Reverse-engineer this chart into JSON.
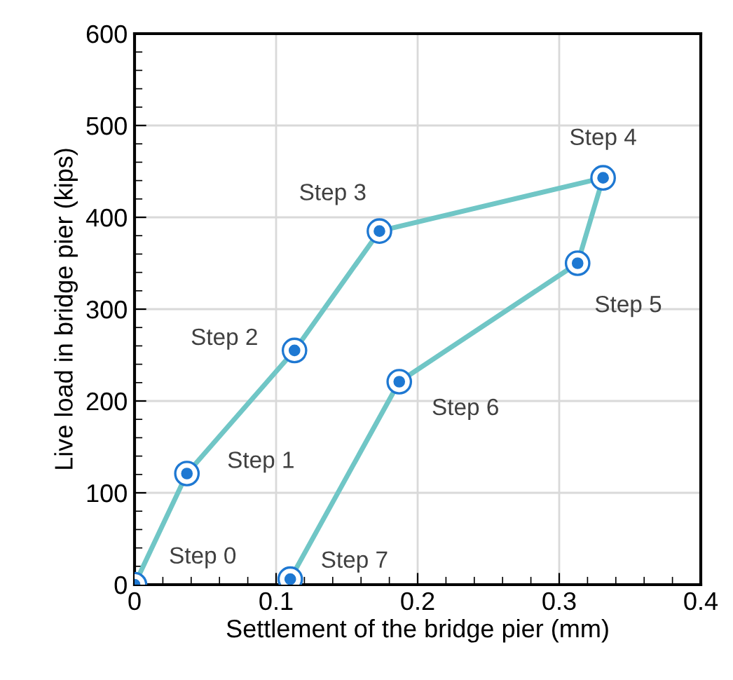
{
  "chart_data": {
    "type": "line",
    "xlabel": "Settlement of the bridge pier (mm)",
    "ylabel": "Live load in bridge pier (kips)",
    "x": [
      0,
      0.037,
      0.113,
      0.173,
      0.331,
      0.313,
      0.187,
      0.11
    ],
    "series": [
      {
        "color": "#70c6c6",
        "values": [
          0,
          121,
          255,
          385,
          443,
          350,
          221,
          6
        ]
      }
    ],
    "marker": "circle",
    "line_style": "solid",
    "xlim": [
      0,
      0.4
    ],
    "xticks": [
      0,
      0.1,
      0.2,
      0.3,
      0.4
    ],
    "ylim": [
      0,
      600
    ],
    "yticks": [
      0,
      100,
      200,
      300,
      400,
      500,
      600
    ],
    "grid": true,
    "annotations": [
      {
        "text": "Step 0",
        "x": 0,
        "y": 0
      },
      {
        "text": "Step 1",
        "x": 0.037,
        "y": 121
      },
      {
        "text": "Step 2",
        "x": 0.113,
        "y": 255
      },
      {
        "text": "Step 3",
        "x": 0.173,
        "y": 385
      },
      {
        "text": "Step 4",
        "x": 0.331,
        "y": 443
      },
      {
        "text": "Step 5",
        "x": 0.313,
        "y": 350
      },
      {
        "text": "Step 6",
        "x": 0.187,
        "y": 221
      },
      {
        "text": "Step 7",
        "x": 0.11,
        "y": 6
      }
    ]
  }
}
